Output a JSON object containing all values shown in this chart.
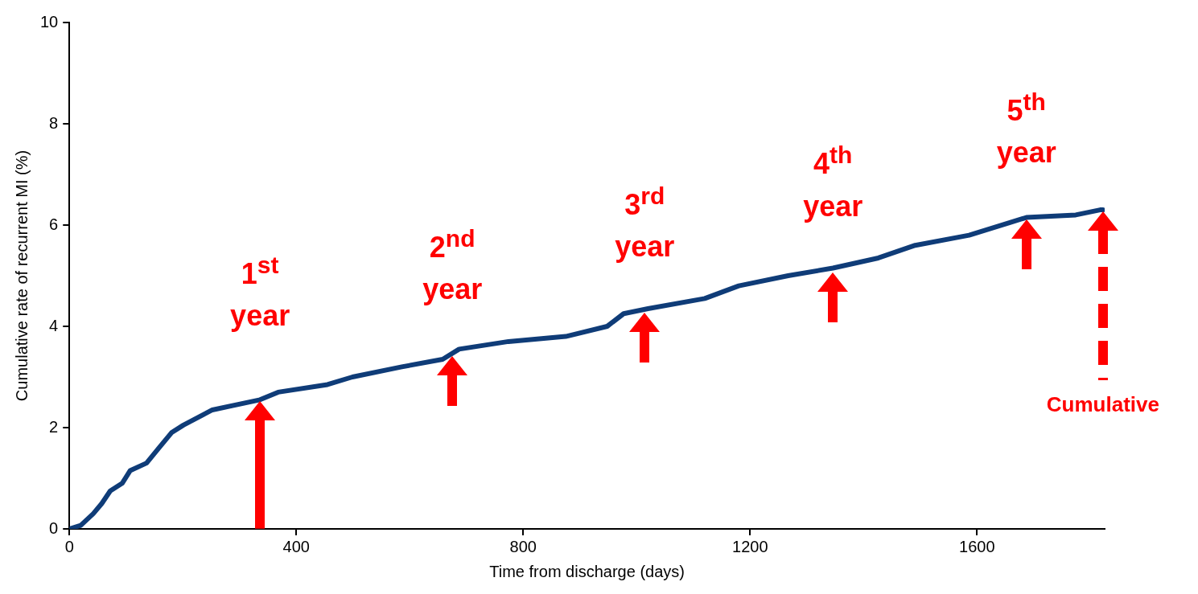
{
  "chart_data": {
    "type": "line",
    "xlabel": "Time from discharge (days)",
    "ylabel": "Cumulative rate of recurrent MI (%)",
    "xlim": [
      0,
      1825
    ],
    "xticks": [
      0,
      400,
      800,
      1200,
      1600
    ],
    "ylim": [
      0,
      10
    ],
    "yticks": [
      0,
      2,
      4,
      6,
      8,
      10
    ],
    "marker": "none",
    "series": [
      {
        "color": "#0f3c78",
        "x": [
          0,
          20,
          42,
          57,
          72,
          93,
          107,
          136,
          158,
          180,
          201,
          252,
          336,
          368,
          455,
          499,
          586,
          658,
          687,
          774,
          875,
          948,
          977,
          1020,
          1120,
          1180,
          1267,
          1346,
          1426,
          1491,
          1586,
          1658,
          1687,
          1774,
          1817,
          1822
        ],
        "values": [
          0,
          0.07,
          0.3,
          0.5,
          0.75,
          0.9,
          1.15,
          1.3,
          1.6,
          1.9,
          2.05,
          2.35,
          2.55,
          2.7,
          2.85,
          3.0,
          3.2,
          3.35,
          3.55,
          3.7,
          3.8,
          4.0,
          4.25,
          4.35,
          4.55,
          4.8,
          5.0,
          5.15,
          5.35,
          5.6,
          5.8,
          6.05,
          6.15,
          6.2,
          6.3,
          6.3
        ]
      }
    ],
    "annotations": [
      {
        "text": "1$^{st}$ year",
        "x": 336,
        "y": 2.55
      },
      {
        "text": "2$^{nd}$ year",
        "x": 675,
        "y": 3.45
      },
      {
        "text": "3$^{rd}$ year",
        "x": 1014,
        "y": 4.3
      },
      {
        "text": "4$^{th}$ year",
        "x": 1346,
        "y": 5.1
      },
      {
        "text": "5$^{th}$ year",
        "x": 1687,
        "y": 6.15
      },
      "Cumulative"
    ]
  }
}
